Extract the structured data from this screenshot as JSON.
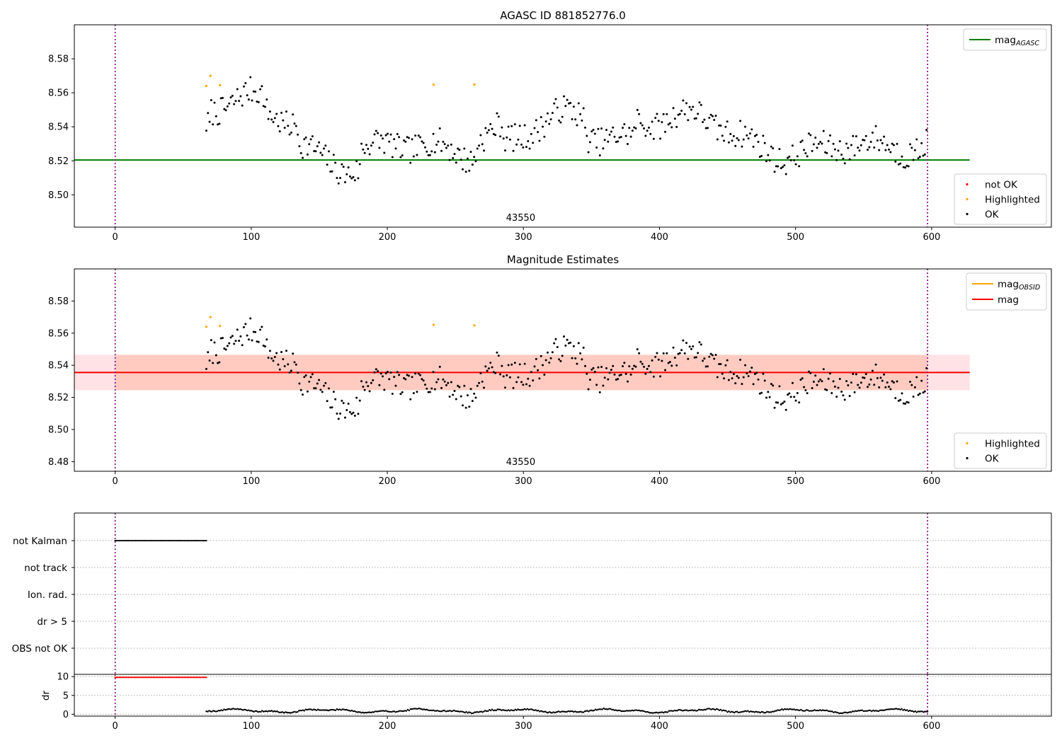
{
  "chart_data": [
    {
      "type": "scatter",
      "title": "AGASC ID 881852776.0",
      "xlim": [
        -30,
        688
      ],
      "ylim": [
        8.481,
        8.6
      ],
      "xticks": [
        0,
        100,
        200,
        300,
        400,
        500,
        600
      ],
      "yticks": [
        8.5,
        8.52,
        8.54,
        8.56,
        8.58
      ],
      "ytick_labels": [
        "8.50",
        "8.52",
        "8.54",
        "8.56",
        "8.58"
      ],
      "annotation": "43550",
      "annotation_x": 298,
      "vlines": [
        0,
        597
      ],
      "hlines": [
        {
          "name": "mag",
          "sub": "AGASC",
          "y": 8.5205,
          "x": [
            -30,
            628
          ],
          "color": "#008000"
        }
      ],
      "legend_top": [
        {
          "name": "mag",
          "sub": "AGASC",
          "color": "#008000",
          "kind": "line"
        }
      ],
      "legend_bottom": [
        {
          "name": "not OK",
          "color": "#ff0000",
          "kind": "dot"
        },
        {
          "name": "Highlighted",
          "color": "#ffa500",
          "kind": "dot"
        },
        {
          "name": "OK",
          "color": "#000000",
          "kind": "dot"
        }
      ],
      "highlighted": {
        "x": [
          67,
          70,
          77,
          234,
          264
        ],
        "y": [
          8.564,
          8.57,
          8.5645,
          8.5648,
          8.5648
        ]
      },
      "ok_generator": {
        "x_start": 67,
        "x_end": 597,
        "step": 1.2,
        "mean": 8.536
      }
    },
    {
      "type": "scatter",
      "title": "Magnitude Estimates",
      "xlim": [
        -30,
        688
      ],
      "ylim": [
        8.474,
        8.6
      ],
      "xticks": [
        0,
        100,
        200,
        300,
        400,
        500,
        600
      ],
      "yticks": [
        8.48,
        8.5,
        8.52,
        8.54,
        8.56,
        8.58
      ],
      "ytick_labels": [
        "8.48",
        "8.50",
        "8.52",
        "8.54",
        "8.56",
        "8.58"
      ],
      "annotation": "43550",
      "annotation_x": 298,
      "vlines": [
        0,
        597
      ],
      "hlines": [
        {
          "name": "mag",
          "y": 8.5355,
          "x": [
            -30,
            628
          ],
          "color": "#ff0000"
        }
      ],
      "bands": [
        {
          "name": "mag",
          "y": [
            8.5245,
            8.5465
          ],
          "x": [
            -30,
            628
          ],
          "color": "#ffb6c1",
          "opacity": 0.4
        },
        {
          "name": "mag_OBSID",
          "y": [
            8.5245,
            8.5465
          ],
          "x": [
            0,
            597
          ],
          "color": "#ffa07a",
          "opacity": 0.35
        }
      ],
      "legend_top": [
        {
          "name": "mag",
          "sub": "OBSID",
          "color": "#ffa500",
          "kind": "line"
        },
        {
          "name": "mag",
          "color": "#ff0000",
          "kind": "line"
        }
      ],
      "legend_bottom": [
        {
          "name": "Highlighted",
          "color": "#ffa500",
          "kind": "dot"
        },
        {
          "name": "OK",
          "color": "#000000",
          "kind": "dot"
        }
      ],
      "highlighted": {
        "x": [
          67,
          70,
          77,
          234,
          264
        ],
        "y": [
          8.564,
          8.57,
          8.5645,
          8.5652,
          8.5648
        ]
      },
      "ok_generator": {
        "x_start": 67,
        "x_end": 597,
        "step": 1.2,
        "mean": 8.536
      }
    },
    {
      "type": "scatter",
      "title": "",
      "xlim": [
        -30,
        688
      ],
      "categories": [
        "not Kalman",
        "not track",
        "Ion. rad.",
        "dr > 5",
        "OBS not OK"
      ],
      "vlines": [
        0,
        597
      ],
      "flags": [
        {
          "category": "not Kalman",
          "x": [
            0,
            67
          ],
          "color": "#000000"
        }
      ]
    },
    {
      "type": "line",
      "title": "",
      "ylabel": "dr",
      "xlim": [
        -30,
        688
      ],
      "ylim": [
        -0.5,
        10.6
      ],
      "xticks": [
        0,
        100,
        200,
        300,
        400,
        500,
        600
      ],
      "yticks": [
        0,
        5,
        10
      ],
      "ytick_labels": [
        "0",
        "5",
        "10"
      ],
      "vlines": [
        0,
        597
      ],
      "capped": {
        "x": [
          0,
          67
        ],
        "y": 9.8,
        "color": "#ff0000"
      },
      "dr_series": {
        "x_start": 67,
        "x_end": 597,
        "step": 1,
        "mean": 0.9
      }
    }
  ]
}
